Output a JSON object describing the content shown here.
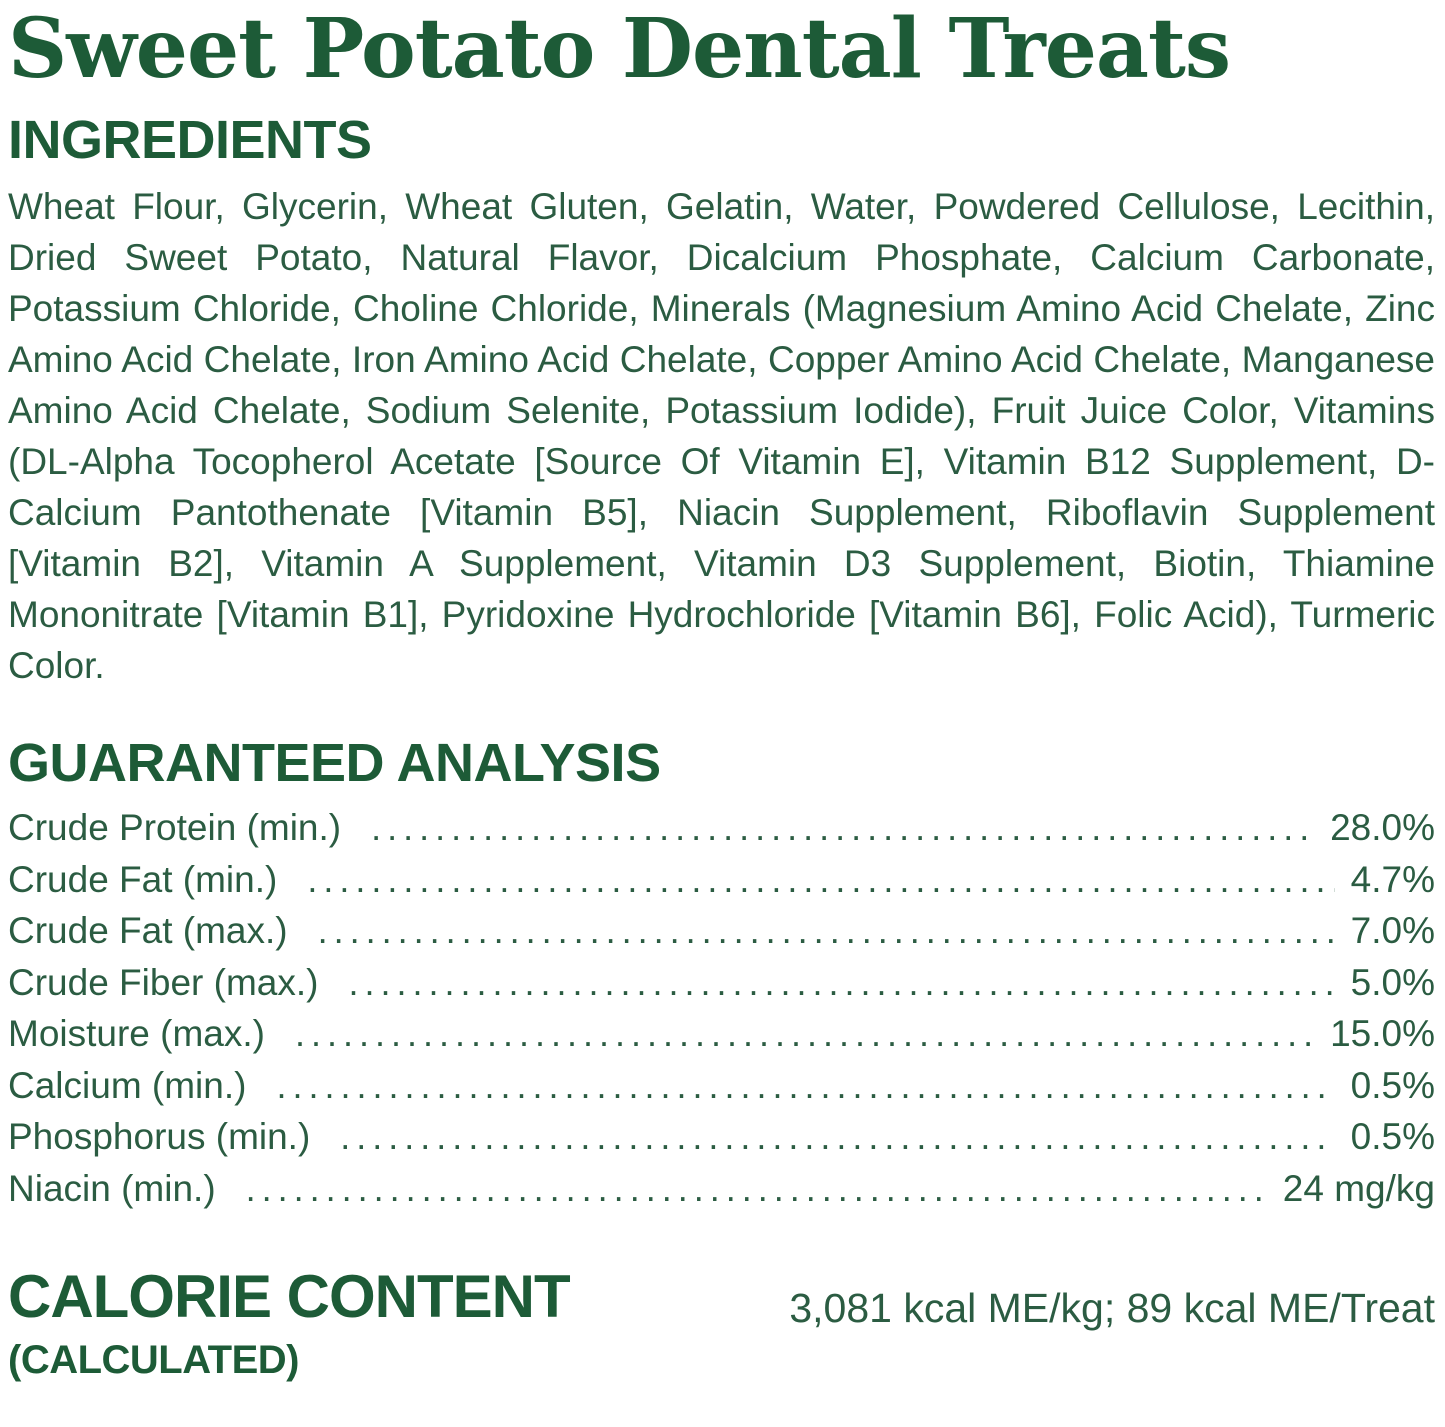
{
  "colors": {
    "heading_green": "#1d5b37",
    "body_green": "#2b5c42",
    "background": "#ffffff"
  },
  "title": "Sweet Potato Dental Treats",
  "ingredients": {
    "heading": "INGREDIENTS",
    "text": "Wheat Flour, Glycerin, Wheat Gluten, Gelatin, Water, Powdered Cellulose, Lecithin, Dried Sweet Potato, Natural Flavor, Dicalcium Phosphate, Calcium Carbonate, Potassium Chloride, Choline Chloride, Minerals (Magnesium Amino Acid Chelate, Zinc Amino Acid Chelate, Iron Amino Acid Chelate, Copper Amino Acid Chelate, Manganese Amino Acid Chelate, Sodium Selenite, Potassium Iodide), Fruit Juice Color, Vitamins (DL-Alpha Tocopherol Acetate [Source Of Vitamin E], Vitamin B12 Supplement, D-Calcium Pantothenate [Vitamin B5], Niacin Supplement, Riboflavin Supplement [Vitamin B2], Vitamin A Supplement, Vitamin D3 Supplement, Biotin, Thiamine Mononitrate [Vitamin B1], Pyridoxine Hydrochloride [Vitamin B6], Folic Acid), Turmeric Color."
  },
  "guaranteed_analysis": {
    "heading": "GUARANTEED ANALYSIS",
    "rows": [
      {
        "label": "Crude Protein (min.)",
        "value": "28.0%"
      },
      {
        "label": "Crude Fat (min.)",
        "value": "4.7%"
      },
      {
        "label": "Crude Fat (max.)",
        "value": "7.0%"
      },
      {
        "label": "Crude Fiber (max.)",
        "value": "5.0%"
      },
      {
        "label": "Moisture (max.)",
        "value": "15.0%"
      },
      {
        "label": "Calcium (min.)",
        "value": "0.5%"
      },
      {
        "label": "Phosphorus (min.)",
        "value": "0.5%"
      },
      {
        "label": "Niacin (min.)",
        "value": "24 mg/kg"
      }
    ]
  },
  "calorie_content": {
    "heading": "CALORIE CONTENT",
    "subheading": "(CALCULATED)",
    "value": "3,081 kcal ME/kg; 89 kcal ME/Treat"
  }
}
